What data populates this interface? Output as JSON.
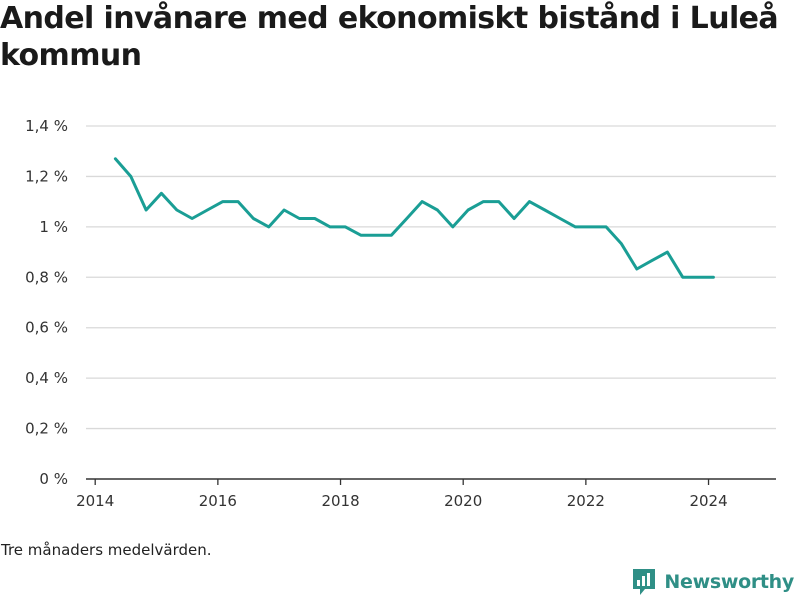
{
  "title": "Andel invånare med ekonomiskt bistånd i Luleå kommun",
  "note": "Tre månaders medelvärden.",
  "brand": {
    "name": "Newsworthy",
    "icon": "newsworthy-logo-icon"
  },
  "colors": {
    "line": "#1a9e95",
    "grid": "#d9d9d9",
    "axis": "#333333",
    "brand": "#2f8f86"
  },
  "chart_data": {
    "type": "line",
    "title": "Andel invånare med ekonomiskt bistånd i Luleå kommun",
    "xlabel": "",
    "ylabel": "",
    "xlim": [
      2013.85,
      2025.1
    ],
    "ylim": [
      0,
      1.4
    ],
    "grid": true,
    "x_ticks": [
      2014,
      2016,
      2018,
      2020,
      2022,
      2024
    ],
    "x_tick_labels": [
      "2014",
      "2016",
      "2018",
      "2020",
      "2022",
      "2024"
    ],
    "y_ticks": [
      0,
      0.2,
      0.4,
      0.6,
      0.8,
      1.0,
      1.2,
      1.4
    ],
    "y_tick_labels": [
      "0 %",
      "0,2 %",
      "0,4 %",
      "0,6 %",
      "0,8 %",
      "1 %",
      "1,2 %",
      "1,4 %"
    ],
    "series": [
      {
        "x": [
          2014.33,
          2014.58,
          2014.83,
          2015.08,
          2015.33,
          2015.58,
          2015.83,
          2016.08,
          2016.33,
          2016.58,
          2016.83,
          2017.08,
          2017.33,
          2017.58,
          2017.83,
          2018.08,
          2018.33,
          2018.58,
          2018.83,
          2019.08,
          2019.33,
          2019.58,
          2019.83,
          2020.08,
          2020.33,
          2020.58,
          2020.83,
          2021.08,
          2021.33,
          2021.58,
          2021.83,
          2022.08,
          2022.33,
          2022.58,
          2022.83,
          2023.08,
          2023.33,
          2023.58,
          2023.83,
          2024.08
        ],
        "values": [
          1.27,
          1.2,
          1.067,
          1.133,
          1.067,
          1.033,
          1.067,
          1.1,
          1.1,
          1.033,
          1.0,
          1.067,
          1.033,
          1.033,
          1.0,
          1.0,
          0.967,
          0.967,
          0.967,
          1.033,
          1.1,
          1.067,
          1.0,
          1.067,
          1.1,
          1.1,
          1.033,
          1.1,
          1.067,
          1.033,
          1.0,
          1.0,
          1.0,
          0.933,
          0.833,
          0.867,
          0.9,
          0.8,
          0.8,
          0.8
        ]
      }
    ]
  }
}
